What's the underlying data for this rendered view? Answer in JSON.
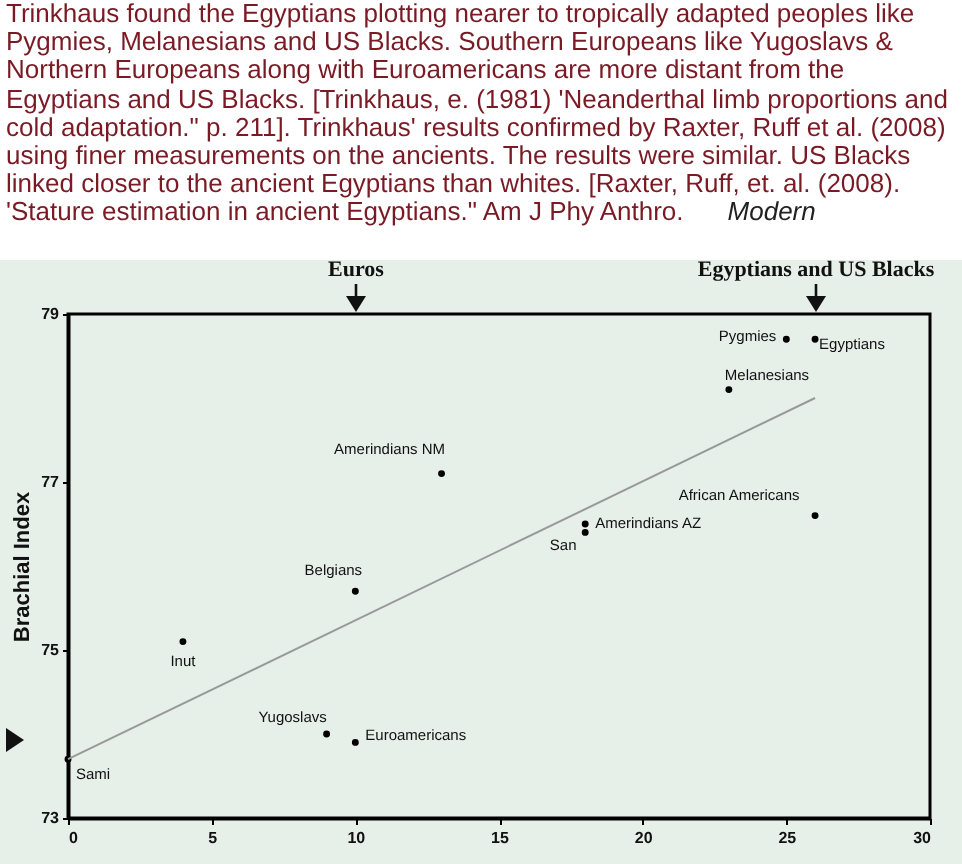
{
  "chart_data": {
    "type": "scatter",
    "title": "Trinkhaus found the Egyptians plotting nearer to tropically adapted peoples like Pygmies, Melanesians and US Blacks. Southern Europeans like Yugoslavs & Northern Europeans along with Euroamericans are more distant from the Egyptians and US Blacks. [Trinkhaus, e. (1981) 'Neanderthal limb proportions and cold adaptation.\" p. 211]. Trinkhaus' results confirmed by Raxter, Ruff et al. (2008) using finer measurements on the ancients. The results were similar. US Blacks linked closer to the ancient Egyptians than whites. [Raxter, Ruff, et. al. (2008). 'Stature estimation in ancient Egyptians.\" Am J Phy Anthro.",
    "ylabel": "Brachial Index",
    "annotations": [
      "Modern",
      "Euros",
      "Egyptians and US Blacks"
    ],
    "xlim": [
      0,
      30
    ],
    "xticks": [
      0,
      5,
      10,
      15,
      20,
      25,
      30
    ],
    "ylim": [
      73,
      79
    ],
    "yticks": [
      73,
      75,
      77,
      79
    ],
    "grid": false,
    "series": [
      {
        "name": "Sami",
        "color": "#000000",
        "x": [
          0
        ],
        "values": [
          73.7
        ]
      },
      {
        "name": "Inut",
        "color": "#000000",
        "x": [
          4
        ],
        "values": [
          75.1
        ]
      },
      {
        "name": "Yugoslavs",
        "color": "#000000",
        "x": [
          9
        ],
        "values": [
          74.0
        ]
      },
      {
        "name": "Euroamericans",
        "color": "#000000",
        "x": [
          10
        ],
        "values": [
          73.9
        ]
      },
      {
        "name": "Belgians",
        "color": "#000000",
        "x": [
          10
        ],
        "values": [
          75.7
        ]
      },
      {
        "name": "Amerindians NM",
        "color": "#000000",
        "x": [
          13
        ],
        "values": [
          77.1
        ]
      },
      {
        "name": "Amerindians AZ",
        "color": "#000000",
        "x": [
          18
        ],
        "values": [
          76.5
        ]
      },
      {
        "name": "San",
        "color": "#000000",
        "x": [
          18
        ],
        "values": [
          76.4
        ]
      },
      {
        "name": "African Americans",
        "color": "#000000",
        "x": [
          26
        ],
        "values": [
          76.6
        ]
      },
      {
        "name": "Melanesians",
        "color": "#000000",
        "x": [
          23
        ],
        "values": [
          78.1
        ]
      },
      {
        "name": "Pygmies",
        "color": "#000000",
        "x": [
          25
        ],
        "values": [
          78.7
        ]
      },
      {
        "name": "Egyptians",
        "color": "#000000",
        "x": [
          26
        ],
        "values": [
          78.7
        ]
      },
      {
        "type": "line",
        "color": "#999999",
        "x": [
          0,
          26
        ],
        "values": [
          73.7,
          78.0
        ]
      }
    ]
  }
}
